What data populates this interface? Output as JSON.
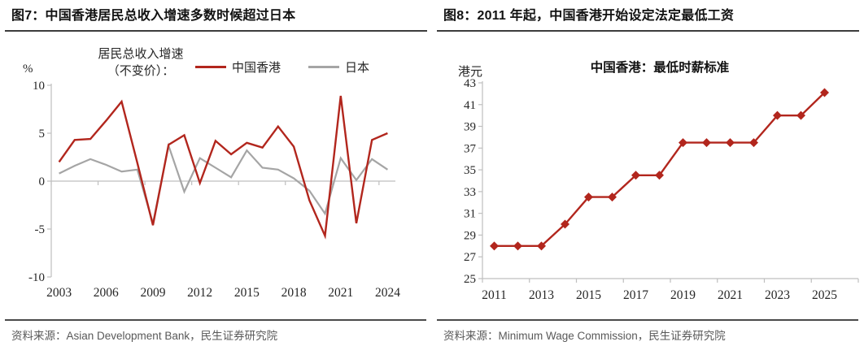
{
  "theme": {
    "accent_red": "#B2261D",
    "japan_gray": "#A5A5A5",
    "axis_gray": "#BFBFBF",
    "tick_text": "#262626",
    "title_color": "#121212",
    "source_color": "#595959"
  },
  "figure7": {
    "header": "图7：中国香港居民总收入增速多数时候超过日本",
    "source": "资料来源：Asian Development Bank，民生证券研究院"
  },
  "figure8": {
    "header": "图8：2011 年起，中国香港开始设定法定最低工资",
    "source": "资料来源：Minimum Wage Commission，民生证券研究院"
  },
  "chart_data": [
    {
      "type": "line",
      "title": "",
      "unit": "%",
      "legend_caption_lines": [
        "居民总收入增速",
        "（不变价）："
      ],
      "legend_position": "top",
      "grid": false,
      "x": [
        2003,
        2004,
        2005,
        2006,
        2007,
        2008,
        2009,
        2010,
        2011,
        2012,
        2013,
        2014,
        2015,
        2016,
        2017,
        2018,
        2019,
        2020,
        2021,
        2022,
        2023,
        2024
      ],
      "xtick_labels": [
        "2003",
        "2006",
        "2009",
        "2012",
        "2015",
        "2018",
        "2021",
        "2024"
      ],
      "ylim": [
        -10,
        10
      ],
      "yticks": [
        10,
        5,
        0,
        -5,
        -10
      ],
      "series": [
        {
          "name": "中国香港",
          "color": "#B2261D",
          "values": [
            2.0,
            4.3,
            4.4,
            6.3,
            8.3,
            1.9,
            -4.6,
            3.8,
            4.8,
            -0.2,
            4.2,
            2.8,
            4.0,
            3.5,
            5.7,
            3.6,
            -2.0,
            -5.7,
            8.9,
            -4.4,
            4.3,
            5.0
          ]
        },
        {
          "name": "日本",
          "color": "#A5A5A5",
          "values": [
            0.8,
            1.6,
            2.3,
            1.7,
            1.0,
            1.2,
            -4.4,
            3.7,
            -1.1,
            2.4,
            1.4,
            0.4,
            3.2,
            1.4,
            1.2,
            0.3,
            -1.0,
            -3.4,
            2.4,
            0.1,
            2.3,
            1.2
          ]
        }
      ]
    },
    {
      "type": "line",
      "title": "中国香港：最低时薪标准",
      "unit": "港元",
      "legend_position": "none",
      "grid": false,
      "x": [
        2011,
        2012,
        2013,
        2014,
        2015,
        2016,
        2017,
        2018,
        2019,
        2020,
        2021,
        2022,
        2023,
        2024,
        2025
      ],
      "xtick_labels": [
        "2011",
        "2013",
        "2015",
        "2017",
        "2019",
        "2021",
        "2023",
        "2025"
      ],
      "ylim": [
        25,
        43
      ],
      "yticks": [
        43,
        41,
        39,
        37,
        35,
        33,
        31,
        29,
        27,
        25
      ],
      "series": [
        {
          "name": "中国香港：最低时薪标准",
          "color": "#B2261D",
          "marker": "diamond",
          "values": [
            28,
            28,
            28,
            30,
            32.5,
            32.5,
            34.5,
            34.5,
            37.5,
            37.5,
            37.5,
            37.5,
            40,
            40,
            42.1
          ]
        }
      ]
    }
  ]
}
